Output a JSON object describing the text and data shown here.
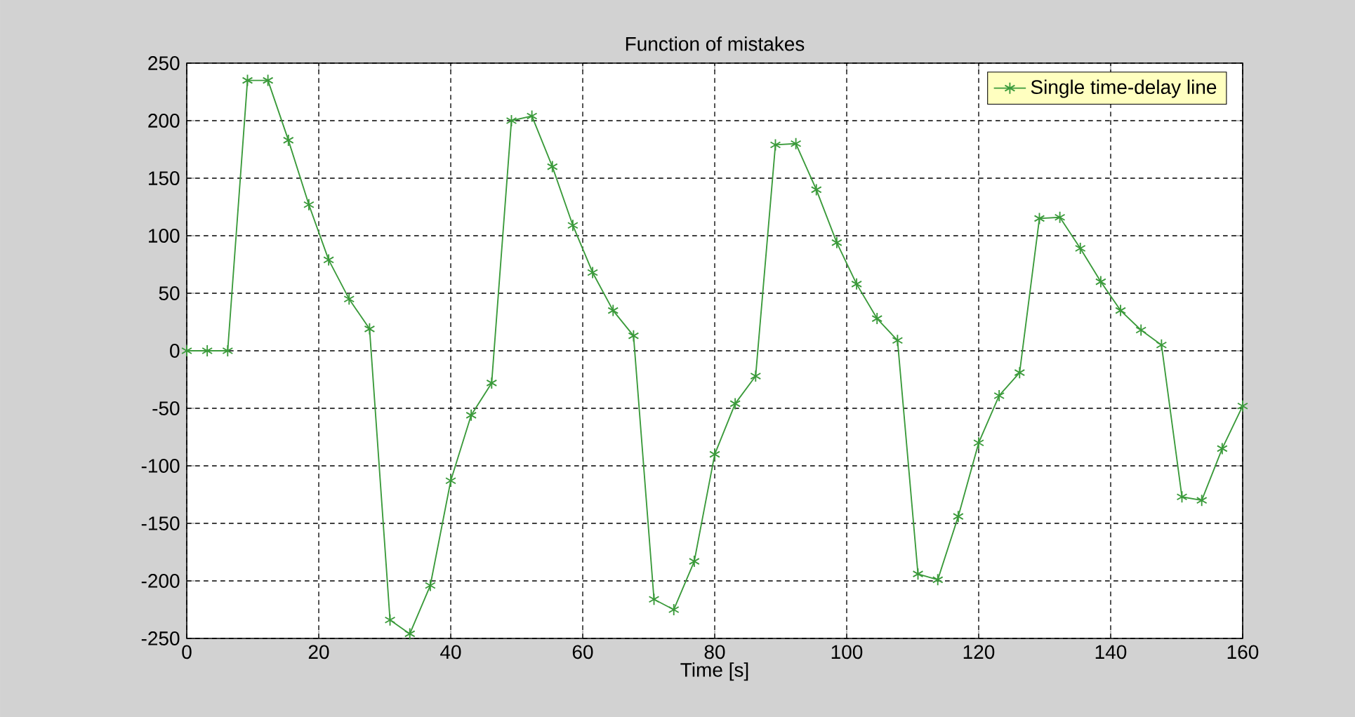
{
  "chart_data": {
    "type": "line",
    "title": "Function of mistakes",
    "xlabel": "Time [s]",
    "x": [
      0,
      3.1,
      6.2,
      9.2,
      12.3,
      15.4,
      18.5,
      21.5,
      24.6,
      27.7,
      30.8,
      33.8,
      36.9,
      40,
      43.1,
      46.2,
      49.2,
      52.3,
      55.4,
      58.5,
      61.5,
      64.6,
      67.7,
      70.8,
      73.8,
      76.9,
      80,
      83.1,
      86.2,
      89.2,
      92.3,
      95.4,
      98.5,
      101.5,
      104.6,
      107.7,
      110.8,
      113.8,
      116.9,
      120,
      123.1,
      126.2,
      129.2,
      132.3,
      135.4,
      138.5,
      141.5,
      144.6,
      147.7,
      150.8,
      153.8,
      156.9,
      160
    ],
    "series": [
      {
        "name": "Single time-delay line",
        "color": "#3a9a3a",
        "values": [
          0,
          0,
          0,
          235,
          235,
          183,
          127,
          79,
          45,
          19,
          -234,
          -246,
          -204,
          -113,
          -56,
          -28,
          200,
          204,
          160,
          109,
          68,
          35,
          13,
          -216,
          -225,
          -183,
          -90,
          -46,
          -22,
          179,
          180,
          140,
          94,
          58,
          28,
          9,
          -194,
          -199,
          -144,
          -80,
          -39,
          -19,
          115,
          116,
          89,
          60,
          35,
          18,
          5,
          -127,
          -130,
          -85,
          -48
        ]
      }
    ],
    "xlim": [
      0,
      160
    ],
    "ylim": [
      -250,
      250
    ],
    "xticks": [
      0,
      20,
      40,
      60,
      80,
      100,
      120,
      140,
      160
    ],
    "yticks": [
      -250,
      -200,
      -150,
      -100,
      -50,
      0,
      50,
      100,
      150,
      200,
      250
    ],
    "grid": true,
    "legend": "top right",
    "marker": "cross",
    "line_style": "solid"
  }
}
